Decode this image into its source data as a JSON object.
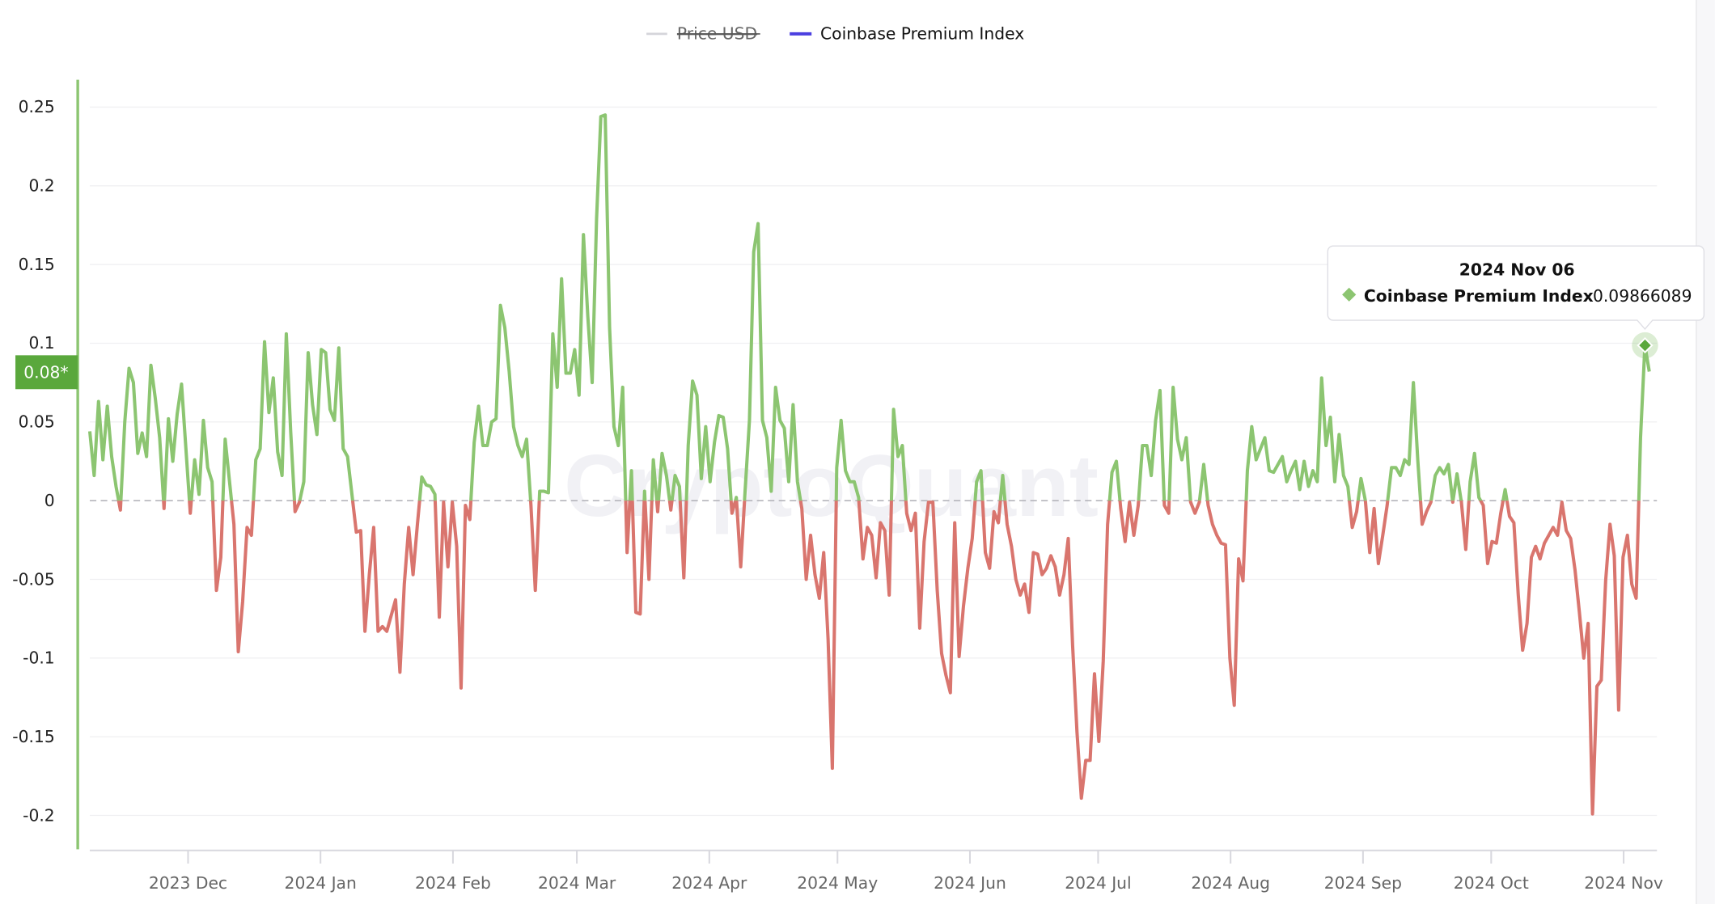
{
  "legend": {
    "items": [
      {
        "label": "Price USD",
        "color": "#d5d5da",
        "hidden": true
      },
      {
        "label": "Coinbase Premium Index",
        "color": "#4b3fe0",
        "hidden": false
      }
    ]
  },
  "watermark": "CryptoQuant",
  "current_value_badge": "0.08*",
  "tooltip": {
    "date": "2024 Nov 06",
    "series": "Coinbase Premium Index",
    "value": "0.09866089"
  },
  "chart_data": {
    "type": "line",
    "title": "",
    "xlabel": "",
    "ylabel": "",
    "series_name": "Coinbase Premium Index",
    "x_start": "2023-11-08",
    "x_end": "2024-11-07",
    "sampling": "uniform between x_start and x_end",
    "ylim": [
      -0.22,
      0.26
    ],
    "yticks": [
      0.25,
      0.2,
      0.15,
      0.1,
      0.05,
      0,
      -0.05,
      -0.1,
      -0.15,
      -0.2
    ],
    "ytick_labels": [
      "0.25",
      "0.2",
      "0.15",
      "0.1",
      "0.05",
      "0",
      "-0.05",
      "-0.1",
      "-0.15",
      "-0.2"
    ],
    "xticks": [
      {
        "date": "2023-12-01",
        "label": "2023 Dec"
      },
      {
        "date": "2024-01-01",
        "label": "2024 Jan"
      },
      {
        "date": "2024-02-01",
        "label": "2024 Feb"
      },
      {
        "date": "2024-03-01",
        "label": "2024 Mar"
      },
      {
        "date": "2024-04-01",
        "label": "2024 Apr"
      },
      {
        "date": "2024-05-01",
        "label": "2024 May"
      },
      {
        "date": "2024-06-01",
        "label": "2024 Jun"
      },
      {
        "date": "2024-07-01",
        "label": "2024 Jul"
      },
      {
        "date": "2024-08-01",
        "label": "2024 Aug"
      },
      {
        "date": "2024-09-01",
        "label": "2024 Sep"
      },
      {
        "date": "2024-10-01",
        "label": "2024 Oct"
      },
      {
        "date": "2024-11-01",
        "label": "2024 Nov"
      }
    ],
    "positive_color": "#8cc571",
    "negative_color": "#d9756e",
    "zero_line": "dashed",
    "grid": true,
    "legend_position": "top-center",
    "highlight": {
      "date": "2024-11-06",
      "value": 0.09866089
    },
    "values": [
      0.044,
      0.016,
      0.063,
      0.026,
      0.06,
      0.028,
      0.009,
      -0.006,
      0.05,
      0.084,
      0.075,
      0.03,
      0.043,
      0.028,
      0.086,
      0.065,
      0.04,
      -0.005,
      0.052,
      0.025,
      0.055,
      0.074,
      0.033,
      -0.008,
      0.026,
      0.004,
      0.051,
      0.021,
      0.012,
      -0.057,
      -0.036,
      0.039,
      0.012,
      -0.015,
      -0.096,
      -0.064,
      -0.017,
      -0.022,
      0.026,
      0.033,
      0.101,
      0.056,
      0.078,
      0.031,
      0.016,
      0.106,
      0.044,
      -0.007,
      -0.001,
      0.012,
      0.094,
      0.061,
      0.042,
      0.096,
      0.094,
      0.058,
      0.051,
      0.097,
      0.033,
      0.028,
      0.004,
      -0.02,
      -0.019,
      -0.083,
      -0.047,
      -0.017,
      -0.083,
      -0.08,
      -0.083,
      -0.073,
      -0.063,
      -0.109,
      -0.053,
      -0.017,
      -0.047,
      -0.015,
      0.015,
      0.01,
      0.009,
      0.004,
      -0.074,
      -0.001,
      -0.042,
      -0.001,
      -0.029,
      -0.119,
      -0.003,
      -0.012,
      0.037,
      0.06,
      0.035,
      0.035,
      0.05,
      0.052,
      0.124,
      0.11,
      0.082,
      0.047,
      0.035,
      0.028,
      0.039,
      -0.003,
      -0.057,
      0.006,
      0.006,
      0.005,
      0.106,
      0.072,
      0.141,
      0.081,
      0.081,
      0.096,
      0.067,
      0.169,
      0.117,
      0.075,
      0.179,
      0.244,
      0.245,
      0.11,
      0.047,
      0.035,
      0.072,
      -0.033,
      0.019,
      -0.071,
      -0.072,
      0.006,
      -0.05,
      0.026,
      -0.007,
      0.03,
      0.016,
      -0.006,
      0.016,
      0.009,
      -0.049,
      0.035,
      0.076,
      0.067,
      0.014,
      0.047,
      0.012,
      0.037,
      0.054,
      0.053,
      0.033,
      -0.008,
      0.002,
      -0.042,
      0.006,
      0.051,
      0.158,
      0.176,
      0.051,
      0.04,
      0.006,
      0.072,
      0.051,
      0.046,
      0.012,
      0.061,
      0.012,
      -0.005,
      -0.05,
      -0.022,
      -0.047,
      -0.062,
      -0.033,
      -0.088,
      -0.17,
      0.021,
      0.051,
      0.019,
      0.012,
      0.012,
      0.002,
      -0.037,
      -0.017,
      -0.022,
      -0.049,
      -0.014,
      -0.019,
      -0.06,
      0.058,
      0.028,
      0.035,
      -0.008,
      -0.019,
      -0.008,
      -0.081,
      -0.026,
      -0.001,
      -0.001,
      -0.057,
      -0.097,
      -0.111,
      -0.122,
      -0.014,
      -0.099,
      -0.067,
      -0.043,
      -0.024,
      0.012,
      0.019,
      -0.033,
      -0.043,
      -0.007,
      -0.014,
      0.016,
      -0.015,
      -0.029,
      -0.05,
      -0.06,
      -0.053,
      -0.071,
      -0.033,
      -0.034,
      -0.047,
      -0.043,
      -0.035,
      -0.042,
      -0.06,
      -0.047,
      -0.024,
      -0.092,
      -0.147,
      -0.189,
      -0.165,
      -0.165,
      -0.11,
      -0.153,
      -0.102,
      -0.015,
      0.018,
      0.025,
      -0.005,
      -0.026,
      -0.001,
      -0.022,
      -0.003,
      0.035,
      0.035,
      0.016,
      0.051,
      0.07,
      -0.003,
      -0.008,
      0.072,
      0.039,
      0.026,
      0.04,
      -0.001,
      -0.008,
      -0.001,
      0.023,
      -0.003,
      -0.015,
      -0.022,
      -0.027,
      -0.028,
      -0.1,
      -0.13,
      -0.037,
      -0.051,
      0.019,
      0.047,
      0.026,
      0.033,
      0.04,
      0.019,
      0.018,
      0.023,
      0.028,
      0.012,
      0.019,
      0.025,
      0.007,
      0.025,
      0.009,
      0.019,
      0.012,
      0.078,
      0.035,
      0.053,
      0.012,
      0.042,
      0.016,
      0.009,
      -0.017,
      -0.007,
      0.014,
      0.0,
      -0.033,
      -0.005,
      -0.04,
      -0.022,
      -0.003,
      0.021,
      0.021,
      0.016,
      0.026,
      0.023,
      0.075,
      0.026,
      -0.015,
      -0.007,
      -0.001,
      0.016,
      0.021,
      0.017,
      0.023,
      -0.001,
      0.017,
      -0.001,
      -0.031,
      0.012,
      0.03,
      0.002,
      -0.003,
      -0.04,
      -0.026,
      -0.027,
      -0.008,
      0.007,
      -0.01,
      -0.014,
      -0.06,
      -0.095,
      -0.078,
      -0.036,
      -0.029,
      -0.037,
      -0.027,
      -0.022,
      -0.017,
      -0.022,
      -0.001,
      -0.019,
      -0.024,
      -0.044,
      -0.071,
      -0.1,
      -0.078,
      -0.199,
      -0.118,
      -0.114,
      -0.051,
      -0.015,
      -0.035,
      -0.133,
      -0.036,
      -0.022,
      -0.053,
      -0.062,
      0.04,
      0.09866089,
      0.082
    ]
  }
}
